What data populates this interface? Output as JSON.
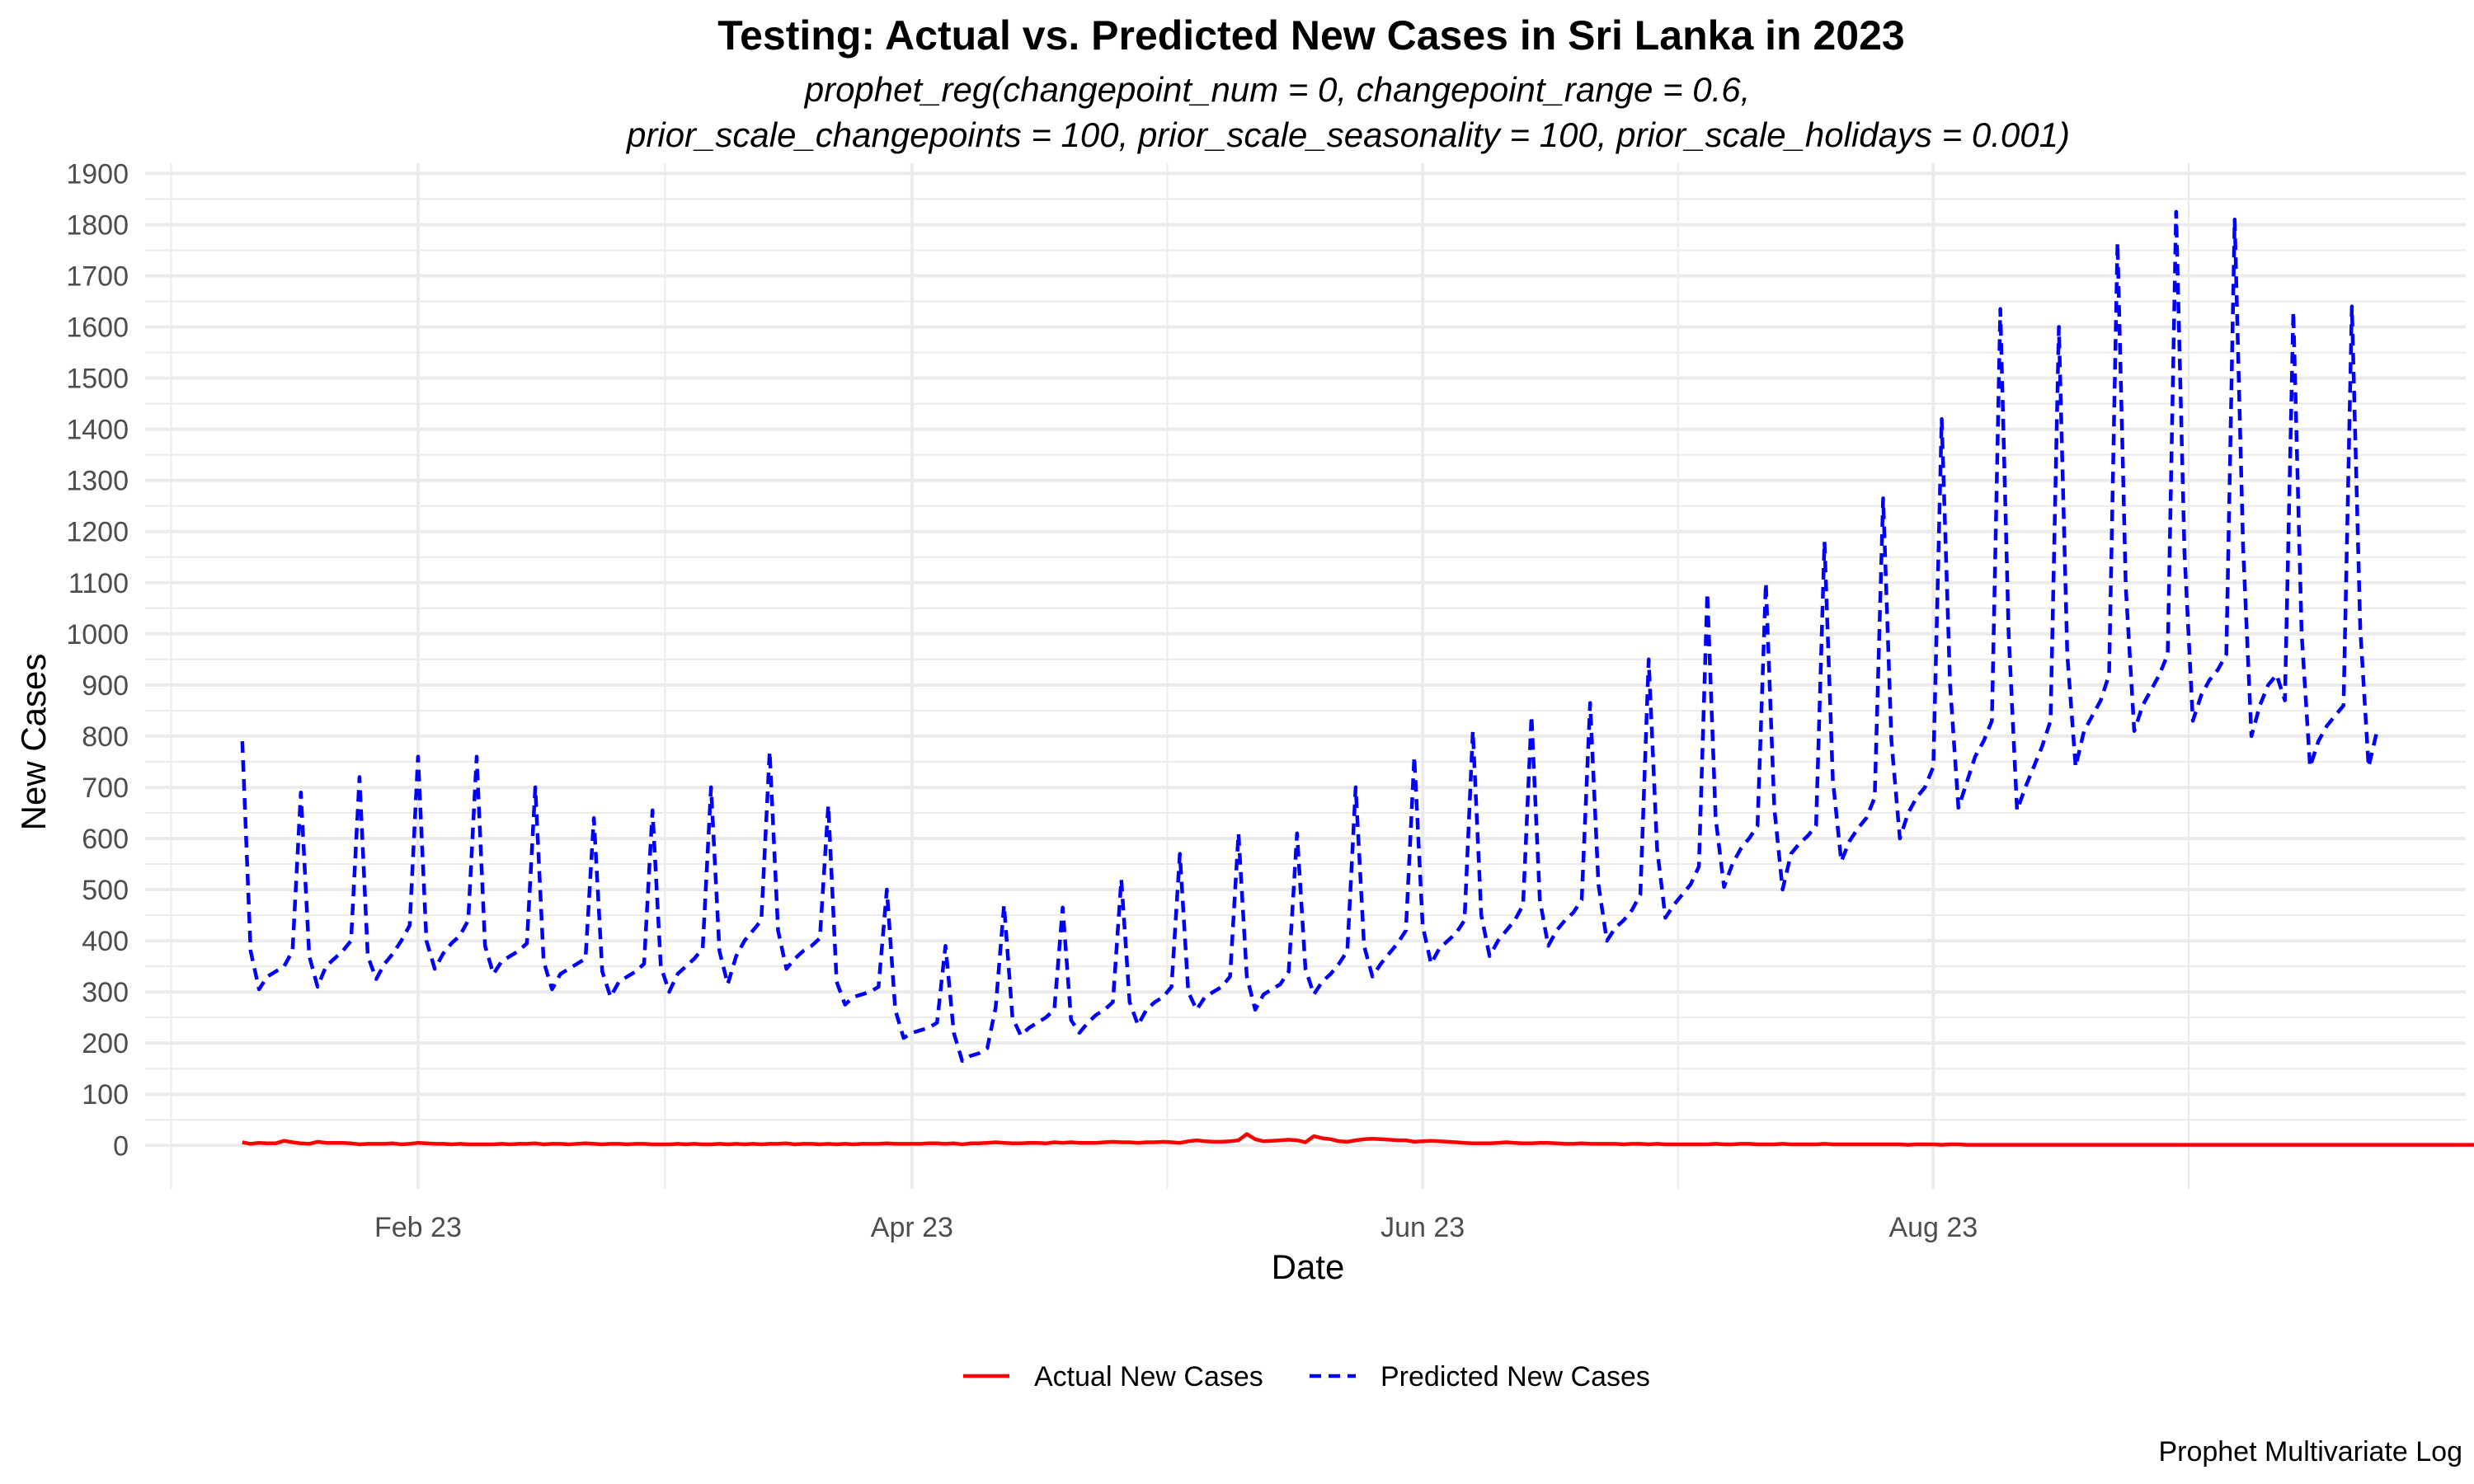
{
  "chart_data": {
    "type": "line",
    "title": "Testing: Actual vs. Predicted New Cases in Sri Lanka in 2023",
    "subtitle_line1": "prophet_reg(changepoint_num = 0, changepoint_range = 0.6,",
    "subtitle_line2": "prior_scale_changepoints = 100, prior_scale_seasonality = 100, prior_scale_holidays = 0.001)",
    "xlabel": "Date",
    "ylabel": "New Cases",
    "caption": "Prophet Multivariate Log",
    "ylim": [
      -85,
      1920
    ],
    "yticks": [
      0,
      100,
      200,
      300,
      400,
      500,
      600,
      700,
      800,
      900,
      1000,
      1100,
      1200,
      1300,
      1400,
      1500,
      1600,
      1700,
      1800,
      1900
    ],
    "xlim_day_of_year": [
      -1.6,
      275.6
    ],
    "xticks": [
      {
        "label": "Feb 23",
        "day": 31
      },
      {
        "label": "Apr 23",
        "day": 90
      },
      {
        "label": "Jun 23",
        "day": 151
      },
      {
        "label": "Aug 23",
        "day": 212
      }
    ],
    "x_start": "2023-01-11",
    "x_step_days": 1,
    "grid": true,
    "legend_position": "bottom",
    "series": [
      {
        "name": "Actual New Cases",
        "color": "#ff0000",
        "dash": "solid",
        "values": [
          6,
          3,
          5,
          4,
          4,
          9,
          6,
          4,
          3,
          7,
          5,
          5,
          5,
          4,
          2,
          3,
          3,
          3,
          4,
          2,
          3,
          5,
          4,
          3,
          3,
          2,
          3,
          2,
          2,
          2,
          2,
          3,
          2,
          3,
          3,
          4,
          2,
          3,
          3,
          2,
          3,
          4,
          3,
          2,
          3,
          3,
          2,
          3,
          3,
          2,
          2,
          2,
          3,
          2,
          3,
          2,
          2,
          3,
          2,
          3,
          2,
          3,
          2,
          3,
          3,
          4,
          2,
          3,
          3,
          2,
          3,
          2,
          3,
          2,
          3,
          3,
          3,
          4,
          3,
          3,
          3,
          3,
          4,
          4,
          3,
          4,
          2,
          4,
          4,
          5,
          6,
          5,
          4,
          4,
          5,
          5,
          4,
          6,
          5,
          6,
          5,
          5,
          5,
          6,
          7,
          6,
          6,
          5,
          6,
          6,
          7,
          6,
          5,
          8,
          10,
          8,
          7,
          7,
          8,
          10,
          22,
          12,
          8,
          9,
          10,
          11,
          10,
          6,
          18,
          14,
          12,
          8,
          7,
          10,
          12,
          13,
          12,
          11,
          10,
          10,
          7,
          8,
          9,
          8,
          7,
          6,
          5,
          4,
          4,
          4,
          5,
          6,
          5,
          4,
          4,
          5,
          5,
          4,
          3,
          3,
          4,
          3,
          3,
          3,
          3,
          2,
          3,
          3,
          2,
          3,
          2,
          2,
          2,
          2,
          2,
          2,
          3,
          2,
          2,
          3,
          3,
          2,
          2,
          2,
          3,
          2,
          2,
          2,
          2,
          3,
          2,
          2,
          2,
          2,
          2,
          2,
          2,
          2,
          2,
          1,
          2,
          2,
          2,
          1,
          2,
          2,
          1,
          1,
          1,
          1,
          1,
          1,
          1,
          1,
          1,
          1,
          1,
          1,
          1,
          1,
          1,
          1,
          1,
          1,
          1,
          1,
          1,
          1,
          1,
          1,
          1,
          1,
          1,
          1,
          1,
          1,
          1,
          1,
          1,
          1,
          1,
          1,
          1,
          1,
          1,
          1,
          1,
          1,
          1,
          1,
          1,
          1,
          1,
          1,
          1,
          1,
          1,
          1,
          1,
          1,
          1,
          1,
          1,
          1,
          1,
          1,
          1,
          1,
          1,
          1,
          1,
          1,
          1,
          1,
          1,
          1,
          1
        ]
      },
      {
        "name": "Predicted New Cases",
        "color": "#0000ff",
        "dash": "dashed",
        "values": [
          790,
          380,
          305,
          330,
          340,
          350,
          380,
          690,
          370,
          310,
          350,
          365,
          380,
          400,
          720,
          370,
          325,
          355,
          375,
          400,
          430,
          760,
          400,
          345,
          375,
          395,
          410,
          440,
          760,
          390,
          335,
          360,
          370,
          380,
          395,
          700,
          360,
          305,
          335,
          345,
          355,
          365,
          640,
          340,
          290,
          320,
          330,
          340,
          355,
          655,
          350,
          300,
          335,
          350,
          365,
          385,
          700,
          380,
          315,
          370,
          400,
          420,
          440,
          770,
          420,
          345,
          365,
          380,
          390,
          405,
          665,
          320,
          275,
          290,
          295,
          300,
          310,
          500,
          265,
          210,
          220,
          225,
          230,
          240,
          390,
          220,
          165,
          175,
          180,
          190,
          270,
          470,
          250,
          215,
          230,
          240,
          250,
          265,
          465,
          245,
          220,
          240,
          255,
          265,
          280,
          520,
          280,
          235,
          265,
          280,
          290,
          310,
          570,
          300,
          265,
          290,
          300,
          310,
          330,
          610,
          330,
          265,
          295,
          305,
          315,
          340,
          610,
          345,
          295,
          320,
          335,
          355,
          380,
          700,
          390,
          330,
          355,
          375,
          395,
          420,
          760,
          430,
          355,
          385,
          400,
          415,
          440,
          810,
          450,
          370,
          400,
          420,
          440,
          470,
          840,
          480,
          390,
          420,
          440,
          455,
          480,
          865,
          510,
          400,
          425,
          440,
          460,
          490,
          950,
          580,
          445,
          470,
          490,
          510,
          545,
          1080,
          640,
          505,
          550,
          580,
          600,
          625,
          1100,
          660,
          500,
          570,
          590,
          605,
          625,
          1180,
          715,
          555,
          595,
          620,
          640,
          680,
          1265,
          790,
          600,
          650,
          680,
          700,
          740,
          1420,
          900,
          660,
          710,
          760,
          790,
          830,
          1635,
          1000,
          655,
          700,
          740,
          780,
          830,
          1600,
          960,
          740,
          810,
          840,
          870,
          920,
          1765,
          1090,
          810,
          860,
          890,
          920,
          960,
          1825,
          1160,
          830,
          880,
          910,
          930,
          960,
          1810,
          1170,
          800,
          860,
          900,
          920,
          870,
          1630,
          1000,
          740,
          790,
          820,
          840,
          860,
          1640,
          1010,
          740,
          810
        ]
      }
    ]
  }
}
